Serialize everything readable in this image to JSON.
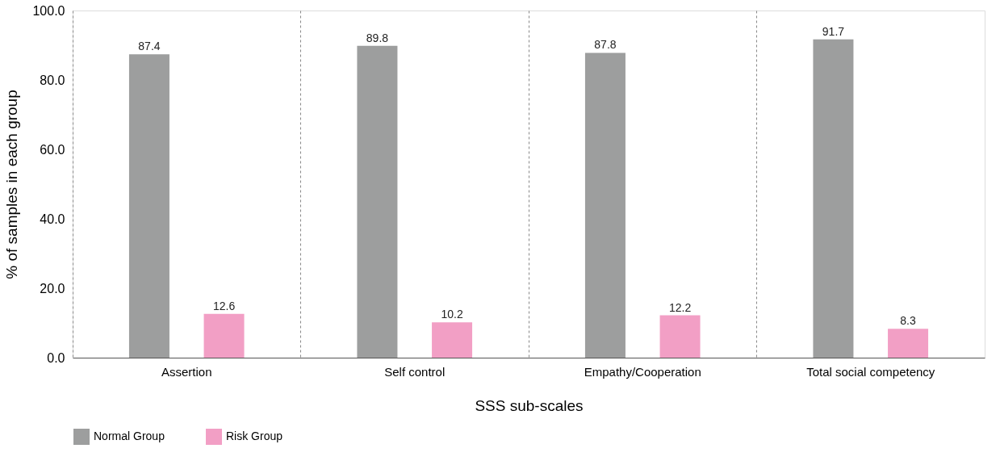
{
  "chart_data": {
    "type": "bar",
    "xlabel": "SSS sub-scales",
    "ylabel": "% of samples in each group",
    "categories": [
      "Assertion",
      "Self control",
      "Empathy/Cooperation",
      "Total social competency"
    ],
    "series": [
      {
        "name": "Normal Group",
        "color": "#9d9e9e",
        "values": [
          87.4,
          89.8,
          87.8,
          91.7
        ]
      },
      {
        "name": "Risk Group",
        "color": "#f29fc5",
        "values": [
          12.6,
          10.2,
          12.2,
          8.3
        ]
      }
    ],
    "ylim": [
      0,
      100
    ],
    "yticks": [
      {
        "value": 0,
        "label": "0.0"
      },
      {
        "value": 20,
        "label": "20.0"
      },
      {
        "value": 40,
        "label": "40.0"
      },
      {
        "value": 60,
        "label": "60.0"
      },
      {
        "value": 80,
        "label": "80.0"
      },
      {
        "value": 100,
        "label": "100.0"
      }
    ],
    "data_labels": true,
    "grid": "x",
    "legend": "bottom"
  }
}
